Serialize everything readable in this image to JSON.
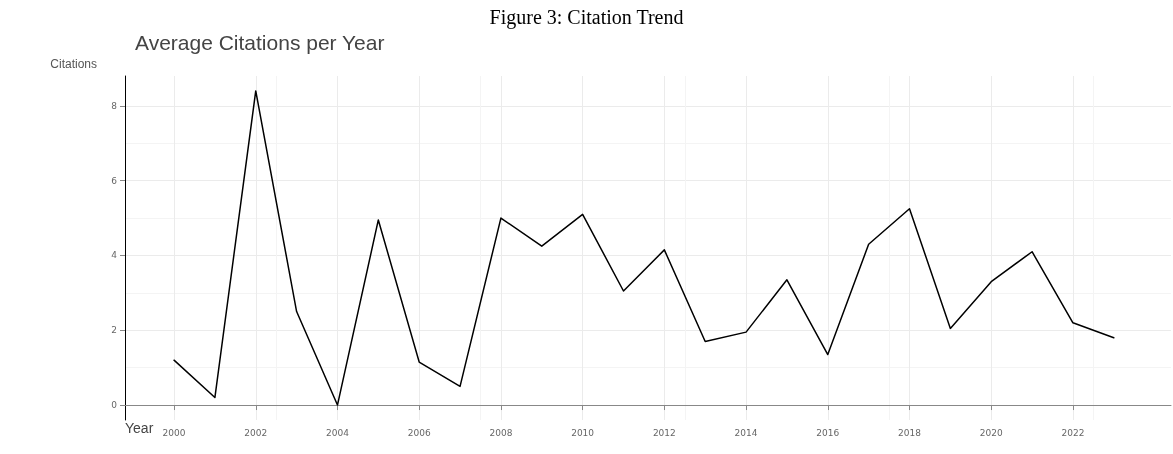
{
  "chart_data": {
    "type": "line",
    "title": "Figure 3: Citation Trend",
    "subtitle": "Average Citations per Year",
    "xlabel": "Year",
    "ylabel": "Citations",
    "x": [
      2000,
      2001,
      2002,
      2003,
      2004,
      2005,
      2006,
      2007,
      2008,
      2009,
      2010,
      2011,
      2012,
      2013,
      2014,
      2015,
      2016,
      2017,
      2018,
      2019,
      2020,
      2021,
      2022,
      2023
    ],
    "series": [
      {
        "color": "#000000",
        "values": [
          1.2,
          0.2,
          8.4,
          2.5,
          0,
          4.95,
          1.15,
          0.5,
          5.0,
          4.25,
          5.1,
          3.05,
          4.15,
          1.7,
          1.95,
          3.35,
          1.35,
          4.3,
          5.25,
          2.05,
          3.3,
          4.1,
          2.2,
          1.8
        ]
      }
    ],
    "xlim": [
      1998.8,
      2024.4
    ],
    "xticks": [
      2000,
      2002,
      2004,
      2006,
      2008,
      2010,
      2012,
      2014,
      2016,
      2018,
      2020,
      2022
    ],
    "ylim": [
      -0.4,
      8.8
    ],
    "yticks": [
      0,
      2,
      4,
      6,
      8
    ],
    "grid": true,
    "marker": "none",
    "line_style": "solid"
  }
}
